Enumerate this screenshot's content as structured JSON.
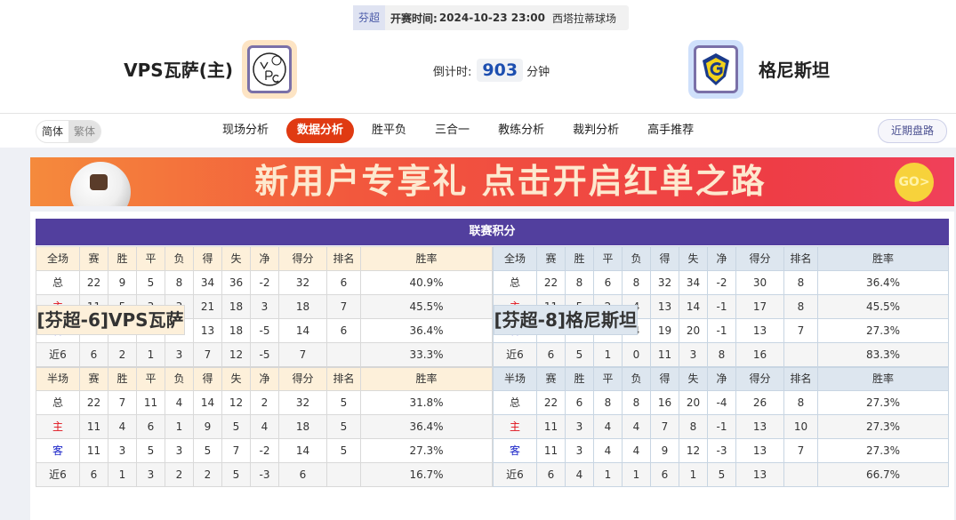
{
  "match": {
    "league": "芬超",
    "time_label": "开赛时间:",
    "time": "2024-10-23 23:00",
    "venue": "西塔拉蒂球场",
    "home_team": "VPS瓦萨(主)",
    "away_team": "格尼斯坦",
    "countdown_label": "倒计时:",
    "countdown": "903",
    "countdown_unit": "分钟"
  },
  "nav": {
    "lang": [
      "简体",
      "繁体"
    ],
    "tabs": [
      "现场分析",
      "数据分析",
      "胜平负",
      "三合一",
      "教练分析",
      "裁判分析",
      "高手推荐"
    ],
    "active_tab": "数据分析",
    "recent": "近期盘路"
  },
  "banner": {
    "text": "新用户专享礼  点击开启红单之路",
    "go": "GO>"
  },
  "standings": {
    "title": "联赛积分",
    "headers_full": [
      "全场",
      "赛",
      "胜",
      "平",
      "负",
      "得",
      "失",
      "净",
      "得分",
      "排名",
      "胜率"
    ],
    "headers_half": [
      "半场",
      "赛",
      "胜",
      "平",
      "负",
      "得",
      "失",
      "净",
      "得分",
      "排名",
      "胜率"
    ],
    "teams": [
      {
        "name": "[芬超-6]VPS瓦萨",
        "full": [
          [
            "总",
            "22",
            "9",
            "5",
            "8",
            "34",
            "36",
            "-2",
            "32",
            "6",
            "40.9%"
          ],
          [
            "主",
            "11",
            "5",
            "3",
            "3",
            "21",
            "18",
            "3",
            "18",
            "7",
            "45.5%"
          ],
          [
            "客",
            "11",
            "4",
            "2",
            "5",
            "13",
            "18",
            "-5",
            "14",
            "6",
            "36.4%"
          ],
          [
            "近6",
            "6",
            "2",
            "1",
            "3",
            "7",
            "12",
            "-5",
            "7",
            "",
            "33.3%"
          ]
        ],
        "half": [
          [
            "总",
            "22",
            "7",
            "11",
            "4",
            "14",
            "12",
            "2",
            "32",
            "5",
            "31.8%"
          ],
          [
            "主",
            "11",
            "4",
            "6",
            "1",
            "9",
            "5",
            "4",
            "18",
            "5",
            "36.4%"
          ],
          [
            "客",
            "11",
            "3",
            "5",
            "3",
            "5",
            "7",
            "-2",
            "14",
            "5",
            "27.3%"
          ],
          [
            "近6",
            "6",
            "1",
            "3",
            "2",
            "2",
            "5",
            "-3",
            "6",
            "",
            "16.7%"
          ]
        ]
      },
      {
        "name": "[芬超-8]格尼斯坦",
        "full": [
          [
            "总",
            "22",
            "8",
            "6",
            "8",
            "32",
            "34",
            "-2",
            "30",
            "8",
            "36.4%"
          ],
          [
            "主",
            "11",
            "5",
            "2",
            "4",
            "13",
            "14",
            "-1",
            "17",
            "8",
            "45.5%"
          ],
          [
            "客",
            "11",
            "3",
            "4",
            "4",
            "19",
            "20",
            "-1",
            "13",
            "7",
            "27.3%"
          ],
          [
            "近6",
            "6",
            "5",
            "1",
            "0",
            "11",
            "3",
            "8",
            "16",
            "",
            "83.3%"
          ]
        ],
        "half": [
          [
            "总",
            "22",
            "6",
            "8",
            "8",
            "16",
            "20",
            "-4",
            "26",
            "8",
            "27.3%"
          ],
          [
            "主",
            "11",
            "3",
            "4",
            "4",
            "7",
            "8",
            "-1",
            "13",
            "10",
            "27.3%"
          ],
          [
            "客",
            "11",
            "3",
            "4",
            "4",
            "9",
            "12",
            "-3",
            "13",
            "7",
            "27.3%"
          ],
          [
            "近6",
            "6",
            "4",
            "1",
            "1",
            "6",
            "1",
            "5",
            "13",
            "",
            "66.7%"
          ]
        ]
      }
    ]
  },
  "colors": {
    "accent": "#e03a12",
    "title_bar": "#523f9e",
    "home": "#e0101a",
    "away": "#1a24c8"
  }
}
